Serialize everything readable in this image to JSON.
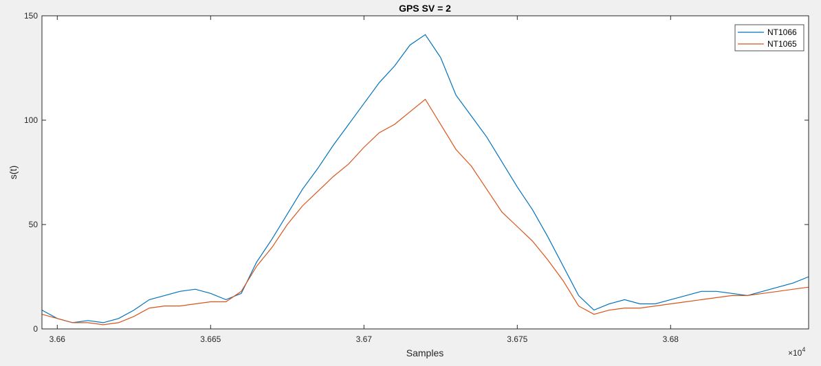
{
  "chart_data": {
    "type": "line",
    "title": "GPS SV = 2",
    "xlabel": "Samples",
    "ylabel": "s(t)",
    "x_exponent_label": "×10",
    "x_exponent_power": "4",
    "xlim": [
      3.6595,
      3.6845
    ],
    "ylim": [
      0,
      150
    ],
    "x_ticks": [
      3.66,
      3.665,
      3.67,
      3.675,
      3.68
    ],
    "x_tick_labels": [
      "3.66",
      "3.665",
      "3.67",
      "3.675",
      "3.68"
    ],
    "y_ticks": [
      0,
      50,
      100,
      150
    ],
    "y_tick_labels": [
      "0",
      "50",
      "100",
      "150"
    ],
    "grid": false,
    "legend_position": "top-right",
    "x": [
      3.6595,
      3.66,
      3.6605,
      3.661,
      3.6615,
      3.662,
      3.6625,
      3.663,
      3.6635,
      3.664,
      3.6645,
      3.665,
      3.6655,
      3.666,
      3.6665,
      3.667,
      3.6675,
      3.668,
      3.6685,
      3.669,
      3.6695,
      3.67,
      3.6705,
      3.671,
      3.6715,
      3.672,
      3.6725,
      3.673,
      3.6735,
      3.674,
      3.6745,
      3.675,
      3.6755,
      3.676,
      3.6765,
      3.677,
      3.6775,
      3.678,
      3.6785,
      3.679,
      3.6795,
      3.68,
      3.6805,
      3.681,
      3.6815,
      3.682,
      3.6825,
      3.683,
      3.6835,
      3.684,
      3.6845
    ],
    "series": [
      {
        "name": "NT1066",
        "color": "#0072bd",
        "values": [
          9,
          5,
          3,
          4,
          3,
          5,
          9,
          14,
          16,
          18,
          19,
          17,
          14,
          17,
          32,
          43,
          55,
          67,
          77,
          88,
          98,
          108,
          118,
          126,
          136,
          141,
          130,
          112,
          102,
          92,
          80,
          68,
          57,
          44,
          30,
          16,
          9,
          12,
          14,
          12,
          12,
          14,
          16,
          18,
          18,
          17,
          16,
          18,
          20,
          22,
          25
        ]
      },
      {
        "name": "NT1065",
        "color": "#d95319",
        "values": [
          7,
          5,
          3,
          3,
          2,
          3,
          6,
          10,
          11,
          11,
          12,
          13,
          13,
          18,
          30,
          39,
          50,
          59,
          66,
          73,
          79,
          87,
          94,
          98,
          104,
          110,
          98,
          86,
          78,
          67,
          56,
          49,
          42,
          33,
          23,
          11,
          7,
          9,
          10,
          10,
          11,
          12,
          13,
          14,
          15,
          16,
          16,
          17,
          18,
          19,
          20
        ]
      }
    ]
  }
}
